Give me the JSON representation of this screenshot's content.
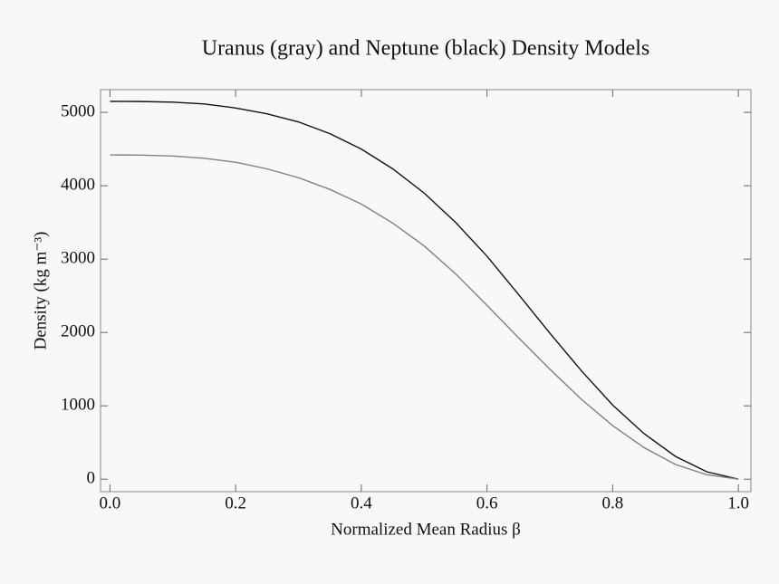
{
  "chart_data": {
    "type": "line",
    "title": "Uranus (gray) and Neptune (black) Density Models",
    "xlabel": "Normalized Mean Radius β",
    "ylabel": "Density (kg m⁻³)",
    "x": [
      0,
      0.05,
      0.1,
      0.15,
      0.2,
      0.25,
      0.3,
      0.35,
      0.4,
      0.45,
      0.5,
      0.55,
      0.6,
      0.65,
      0.7,
      0.75,
      0.8,
      0.85,
      0.9,
      0.95,
      1
    ],
    "series": [
      {
        "color": "#111111",
        "values": [
          5150,
          5148,
          5140,
          5115,
          5060,
          4980,
          4870,
          4710,
          4500,
          4230,
          3900,
          3500,
          3040,
          2520,
          1990,
          1480,
          1010,
          620,
          310,
          100,
          0
        ]
      },
      {
        "color": "#808080",
        "values": [
          4420,
          4418,
          4405,
          4375,
          4320,
          4230,
          4110,
          3950,
          3750,
          3490,
          3180,
          2800,
          2370,
          1930,
          1500,
          1090,
          730,
          430,
          200,
          60,
          0
        ]
      }
    ],
    "xlim": [
      -0.015,
      1.02
    ],
    "ylim": [
      -170,
      5310
    ],
    "xticks": [
      {
        "value": 0,
        "label": "0.0"
      },
      0.2,
      0.4,
      0.6,
      0.8,
      {
        "value": 1,
        "label": "1.0"
      }
    ],
    "yticks": [
      0,
      1000,
      2000,
      3000,
      4000,
      5000
    ]
  }
}
